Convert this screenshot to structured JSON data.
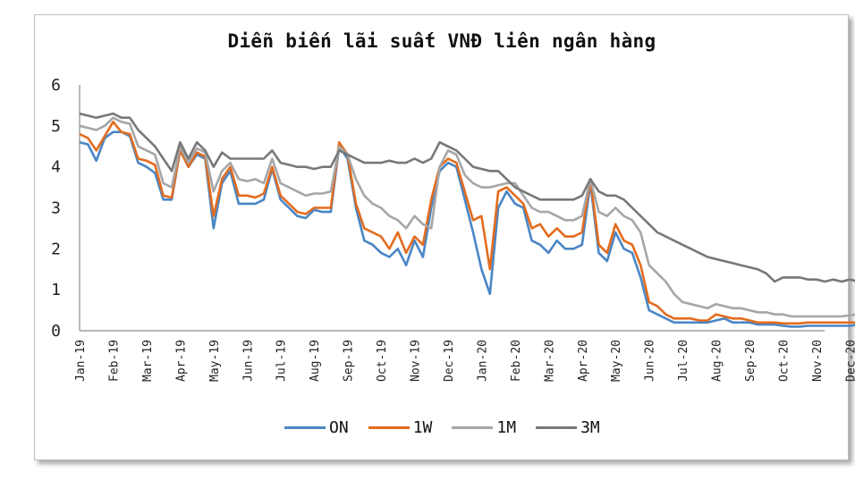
{
  "chart_data": {
    "type": "line",
    "title": "Diễn biến lãi suất VNĐ liên ngân hàng",
    "xlabel": "",
    "ylabel": "",
    "ylim": [
      0,
      6
    ],
    "yticks": [
      0,
      1,
      2,
      3,
      4,
      5,
      6
    ],
    "grid": false,
    "legend_position": "bottom",
    "categories": [
      "Jan-19",
      "Feb-19",
      "Mar-19",
      "Apr-19",
      "May-19",
      "Jun-19",
      "Jul-19",
      "Aug-19",
      "Sep-19",
      "Oct-19",
      "Nov-19",
      "Dec-19",
      "Jan-20",
      "Feb-20",
      "Mar-20",
      "Apr-20",
      "May-20",
      "Jun-20",
      "Jul-20",
      "Aug-20",
      "Sep-20",
      "Oct-20",
      "Nov-20",
      "Dec-20"
    ],
    "x": [
      0,
      0.25,
      0.5,
      0.75,
      1,
      1.25,
      1.5,
      1.75,
      2,
      2.25,
      2.5,
      2.75,
      3,
      3.25,
      3.5,
      3.75,
      4,
      4.25,
      4.5,
      4.75,
      5,
      5.25,
      5.5,
      5.75,
      6,
      6.25,
      6.5,
      6.75,
      7,
      7.25,
      7.5,
      7.75,
      8,
      8.25,
      8.5,
      8.75,
      9,
      9.25,
      9.5,
      9.75,
      10,
      10.25,
      10.5,
      10.75,
      11,
      11.25,
      11.5,
      11.75,
      12,
      12.25,
      12.5,
      12.75,
      13,
      13.25,
      13.5,
      13.75,
      14,
      14.25,
      14.5,
      14.75,
      15,
      15.25,
      15.5,
      15.75,
      16,
      16.25,
      16.5,
      16.75,
      17,
      17.25,
      17.5,
      17.75,
      18,
      18.25,
      18.5,
      18.75,
      19,
      19.25,
      19.5,
      19.75,
      20,
      20.25,
      20.5,
      20.75,
      21,
      21.25,
      21.5,
      21.75,
      22,
      22.25,
      22.5,
      22.75,
      23,
      23.25
    ],
    "series": [
      {
        "name": "ON",
        "color": "#4a86c5",
        "values": [
          4.6,
          4.55,
          4.15,
          4.7,
          4.85,
          4.85,
          4.75,
          4.1,
          4.0,
          3.85,
          3.2,
          3.2,
          4.4,
          4.0,
          4.3,
          4.2,
          2.5,
          3.6,
          3.9,
          3.1,
          3.1,
          3.1,
          3.2,
          3.95,
          3.2,
          3.0,
          2.8,
          2.75,
          2.95,
          2.9,
          2.9,
          4.5,
          4.2,
          3.0,
          2.2,
          2.1,
          1.9,
          1.8,
          2.0,
          1.6,
          2.2,
          1.8,
          3.0,
          3.9,
          4.1,
          4.0,
          3.2,
          2.4,
          1.5,
          0.9,
          3.0,
          3.4,
          3.1,
          3.0,
          2.2,
          2.1,
          1.9,
          2.2,
          2.0,
          2.0,
          2.1,
          3.6,
          1.9,
          1.7,
          2.4,
          2.0,
          1.9,
          1.3,
          0.5,
          0.4,
          0.3,
          0.2,
          0.2,
          0.2,
          0.2,
          0.2,
          0.25,
          0.3,
          0.2,
          0.2,
          0.2,
          0.15,
          0.15,
          0.15,
          0.12,
          0.1,
          0.1,
          0.12,
          0.12,
          0.12,
          0.12,
          0.12,
          0.12,
          0.15
        ]
      },
      {
        "name": "1W",
        "color": "#e36c1f",
        "values": [
          4.8,
          4.7,
          4.4,
          4.75,
          5.1,
          4.85,
          4.8,
          4.2,
          4.15,
          4.05,
          3.3,
          3.25,
          4.4,
          4.0,
          4.35,
          4.25,
          2.8,
          3.7,
          4.0,
          3.3,
          3.3,
          3.25,
          3.35,
          4.0,
          3.3,
          3.1,
          2.9,
          2.85,
          3.0,
          3.0,
          3.0,
          4.6,
          4.3,
          3.1,
          2.5,
          2.4,
          2.3,
          2.0,
          2.4,
          1.9,
          2.3,
          2.1,
          3.2,
          4.0,
          4.2,
          4.1,
          3.4,
          2.7,
          2.8,
          1.5,
          3.4,
          3.5,
          3.3,
          3.1,
          2.5,
          2.6,
          2.3,
          2.5,
          2.3,
          2.3,
          2.4,
          3.7,
          2.1,
          1.9,
          2.6,
          2.2,
          2.1,
          1.6,
          0.7,
          0.6,
          0.4,
          0.3,
          0.3,
          0.3,
          0.25,
          0.25,
          0.4,
          0.35,
          0.3,
          0.3,
          0.25,
          0.2,
          0.2,
          0.2,
          0.18,
          0.18,
          0.18,
          0.2,
          0.2,
          0.2,
          0.2,
          0.2,
          0.2,
          0.2
        ]
      },
      {
        "name": "1M",
        "color": "#a6a6a6",
        "values": [
          5.0,
          4.95,
          4.9,
          5.0,
          5.2,
          5.1,
          5.05,
          4.5,
          4.4,
          4.3,
          3.6,
          3.5,
          4.5,
          4.1,
          4.45,
          4.35,
          3.4,
          3.9,
          4.1,
          3.7,
          3.65,
          3.7,
          3.6,
          4.2,
          3.6,
          3.5,
          3.4,
          3.3,
          3.35,
          3.35,
          3.4,
          4.5,
          4.3,
          3.7,
          3.3,
          3.1,
          3.0,
          2.8,
          2.7,
          2.5,
          2.8,
          2.6,
          2.5,
          4.0,
          4.4,
          4.3,
          3.8,
          3.6,
          3.5,
          3.5,
          3.55,
          3.6,
          3.6,
          3.3,
          3.0,
          2.9,
          2.9,
          2.8,
          2.7,
          2.7,
          2.8,
          3.7,
          2.9,
          2.8,
          3.0,
          2.8,
          2.7,
          2.4,
          1.6,
          1.4,
          1.2,
          0.9,
          0.7,
          0.65,
          0.6,
          0.55,
          0.65,
          0.6,
          0.55,
          0.55,
          0.5,
          0.45,
          0.45,
          0.4,
          0.4,
          0.35,
          0.35,
          0.35,
          0.35,
          0.35,
          0.35,
          0.35,
          0.38,
          0.4
        ]
      },
      {
        "name": "3M",
        "color": "#787878",
        "values": [
          5.3,
          5.25,
          5.2,
          5.25,
          5.3,
          5.2,
          5.2,
          4.9,
          4.7,
          4.5,
          4.2,
          3.9,
          4.6,
          4.2,
          4.6,
          4.4,
          4.0,
          4.35,
          4.2,
          4.2,
          4.2,
          4.2,
          4.2,
          4.4,
          4.1,
          4.05,
          4.0,
          4.0,
          3.95,
          4.0,
          4.0,
          4.4,
          4.3,
          4.2,
          4.1,
          4.1,
          4.1,
          4.15,
          4.1,
          4.1,
          4.2,
          4.1,
          4.2,
          4.6,
          4.5,
          4.4,
          4.2,
          4.0,
          3.95,
          3.9,
          3.9,
          3.7,
          3.5,
          3.4,
          3.3,
          3.2,
          3.2,
          3.2,
          3.2,
          3.2,
          3.3,
          3.7,
          3.4,
          3.3,
          3.3,
          3.2,
          3.0,
          2.8,
          2.6,
          2.4,
          2.3,
          2.2,
          2.1,
          2.0,
          1.9,
          1.8,
          1.75,
          1.7,
          1.65,
          1.6,
          1.55,
          1.5,
          1.4,
          1.2,
          1.3,
          1.3,
          1.3,
          1.25,
          1.25,
          1.2,
          1.25,
          1.2,
          1.25,
          1.2
        ]
      }
    ]
  }
}
